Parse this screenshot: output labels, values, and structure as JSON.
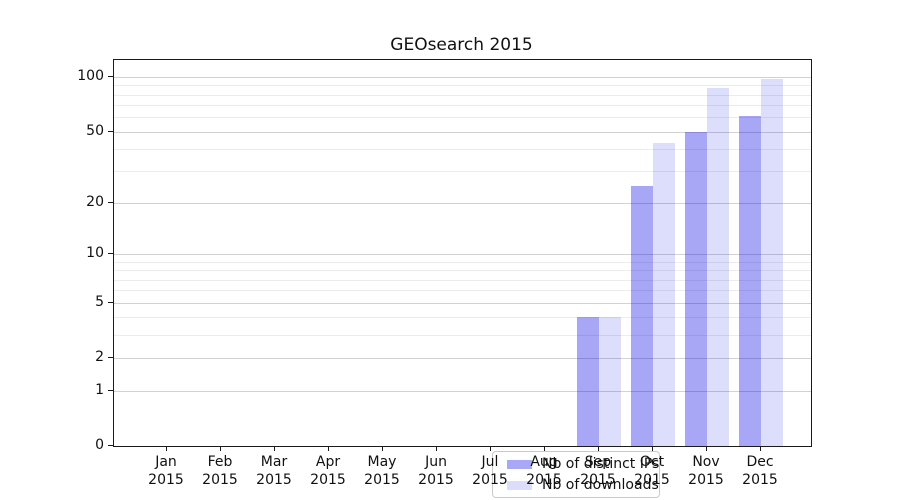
{
  "figure": {
    "background": "#ffffff"
  },
  "chart_data": {
    "type": "bar",
    "title": "GEOsearch 2015",
    "xlabel": "",
    "ylabel": "",
    "categories": [
      "Jan 2015",
      "Feb 2015",
      "Mar 2015",
      "Apr 2015",
      "May 2015",
      "Jun 2015",
      "Jul 2015",
      "Aug 2015",
      "Sep 2015",
      "Oct 2015",
      "Nov 2015",
      "Dec 2015"
    ],
    "series": [
      {
        "name": "Nb of distinct IPs",
        "color": "#a8a8f6",
        "fill": "rgba(0,0,230,0.345)",
        "values": [
          0,
          0,
          0,
          0,
          0,
          0,
          0,
          0,
          4,
          25,
          50,
          61
        ]
      },
      {
        "name": "Nb of downloads",
        "color": "#dcdcfb",
        "fill": "rgba(0,0,230,0.135)",
        "values": [
          0,
          0,
          0,
          0,
          0,
          0,
          0,
          0,
          4,
          43,
          87,
          98
        ]
      }
    ],
    "yscale": "log10(1+y)",
    "ylim": [
      0,
      124
    ],
    "yticks": [
      {
        "v": 100,
        "label": "100"
      },
      {
        "v": 50,
        "label": "50"
      },
      {
        "v": 20,
        "label": "20"
      },
      {
        "v": 10,
        "label": "10"
      },
      {
        "v": 5,
        "label": "5"
      },
      {
        "v": 2,
        "label": "2"
      },
      {
        "v": 1,
        "label": "1"
      },
      {
        "v": 0,
        "label": "0"
      }
    ],
    "major_gridlines": [
      1,
      2,
      5,
      10,
      20,
      50,
      100
    ],
    "minor_gridlines": [
      3,
      4,
      6,
      7,
      8,
      9,
      30,
      40,
      60,
      70,
      80,
      90
    ],
    "grid": true,
    "legend_position": "lower center"
  }
}
